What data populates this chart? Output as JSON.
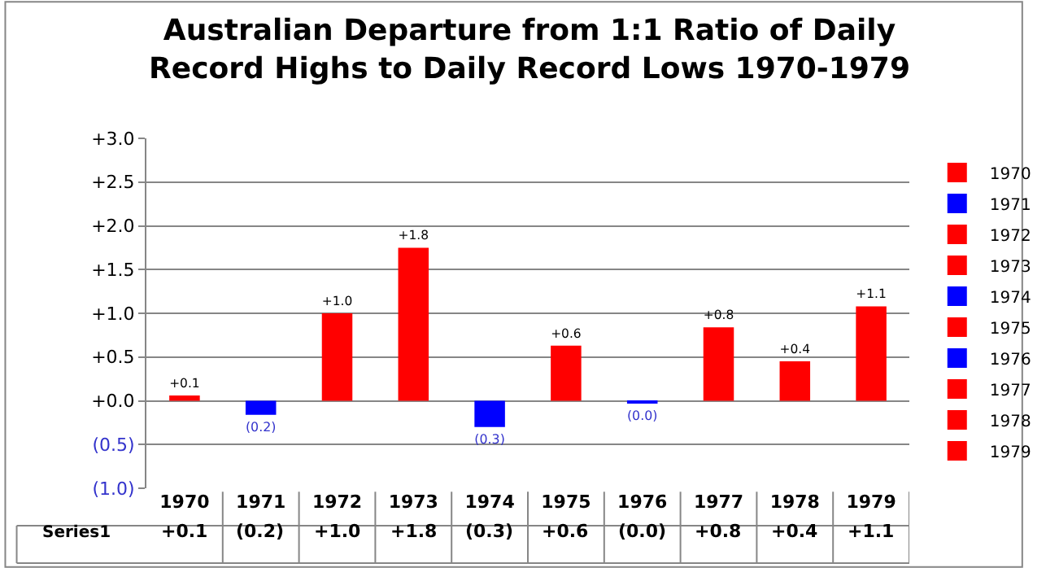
{
  "chart_data": {
    "type": "bar",
    "title": "Australian Departure from 1:1 Ratio of Daily\nRecord Highs to Daily Record Lows 1970-1979",
    "categories": [
      "1970",
      "1971",
      "1972",
      "1973",
      "1974",
      "1975",
      "1976",
      "1977",
      "1978",
      "1979"
    ],
    "series": [
      {
        "name": "1970",
        "color": "#ff0000",
        "values": [
          0.06,
          null,
          null,
          null,
          null,
          null,
          null,
          null,
          null,
          null
        ],
        "value_labels": [
          "+0.1",
          null,
          null,
          null,
          null,
          null,
          null,
          null,
          null,
          null
        ]
      },
      {
        "name": "1971",
        "color": "#0000ff",
        "values": [
          null,
          -0.16,
          null,
          null,
          null,
          null,
          null,
          null,
          null,
          null
        ],
        "value_labels": [
          null,
          "(0.2)",
          null,
          null,
          null,
          null,
          null,
          null,
          null,
          null
        ]
      },
      {
        "name": "1972",
        "color": "#ff0000",
        "values": [
          null,
          null,
          1.0,
          null,
          null,
          null,
          null,
          null,
          null,
          null
        ],
        "value_labels": [
          null,
          null,
          "+1.0",
          null,
          null,
          null,
          null,
          null,
          null,
          null
        ]
      },
      {
        "name": "1973",
        "color": "#ff0000",
        "values": [
          null,
          null,
          null,
          1.75,
          null,
          null,
          null,
          null,
          null,
          null
        ],
        "value_labels": [
          null,
          null,
          null,
          "+1.8",
          null,
          null,
          null,
          null,
          null,
          null
        ]
      },
      {
        "name": "1974",
        "color": "#0000ff",
        "values": [
          null,
          null,
          null,
          null,
          -0.3,
          null,
          null,
          null,
          null,
          null
        ],
        "value_labels": [
          null,
          null,
          null,
          null,
          "(0.3)",
          null,
          null,
          null,
          null,
          null
        ]
      },
      {
        "name": "1975",
        "color": "#ff0000",
        "values": [
          null,
          null,
          null,
          null,
          null,
          0.63,
          null,
          null,
          null,
          null
        ],
        "value_labels": [
          null,
          null,
          null,
          null,
          null,
          "+0.6",
          null,
          null,
          null,
          null
        ]
      },
      {
        "name": "1976",
        "color": "#0000ff",
        "values": [
          null,
          null,
          null,
          null,
          null,
          null,
          -0.02,
          null,
          null,
          null
        ],
        "value_labels": [
          null,
          null,
          null,
          null,
          null,
          null,
          "(0.0)",
          null,
          null,
          null
        ]
      },
      {
        "name": "1977",
        "color": "#ff0000",
        "values": [
          null,
          null,
          null,
          null,
          null,
          null,
          null,
          0.84,
          null,
          null
        ],
        "value_labels": [
          null,
          null,
          null,
          null,
          null,
          null,
          null,
          "+0.8",
          null,
          null
        ]
      },
      {
        "name": "1978",
        "color": "#ff0000",
        "values": [
          null,
          null,
          null,
          null,
          null,
          null,
          null,
          null,
          0.45,
          null
        ],
        "value_labels": [
          null,
          null,
          null,
          null,
          null,
          null,
          null,
          null,
          "+0.4",
          null
        ]
      },
      {
        "name": "1979",
        "color": "#ff0000",
        "values": [
          null,
          null,
          null,
          null,
          null,
          null,
          null,
          null,
          null,
          1.08
        ],
        "value_labels": [
          null,
          null,
          null,
          null,
          null,
          null,
          null,
          null,
          null,
          "+1.1"
        ]
      }
    ],
    "annotations": [
      "Series1"
    ],
    "ylim": [
      -1.0,
      3.0
    ],
    "yticks": [
      {
        "value": -1.0,
        "label": "(1.0)"
      },
      {
        "value": -0.5,
        "label": "(0.5)"
      },
      {
        "value": 0,
        "label": "+0.0"
      },
      {
        "value": 0.5,
        "label": "+0.5"
      },
      {
        "value": 1.0,
        "label": "+1.0"
      },
      {
        "value": 1.5,
        "label": "+1.5"
      },
      {
        "value": 2.0,
        "label": "+2.0"
      },
      {
        "value": 2.5,
        "label": "+2.5"
      },
      {
        "value": 3.0,
        "label": "+3.0"
      }
    ],
    "grid": "y",
    "legend": "right"
  }
}
